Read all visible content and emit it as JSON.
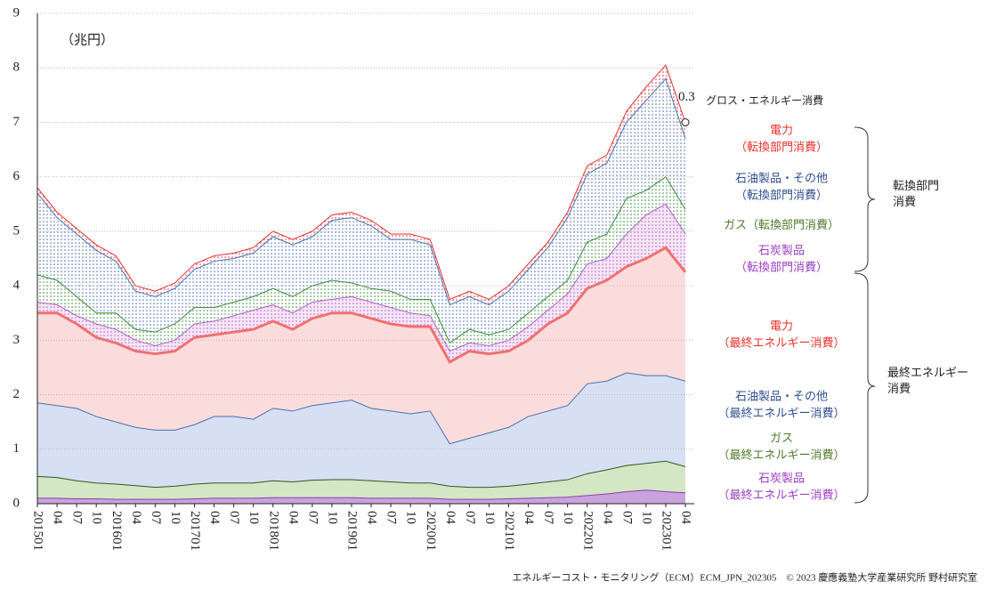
{
  "chart_data": {
    "type": "stacked_area",
    "unit": "（兆円）",
    "categories": [
      "201501",
      "04",
      "07",
      "10",
      "201601",
      "04",
      "07",
      "10",
      "201701",
      "04",
      "07",
      "10",
      "201801",
      "04",
      "07",
      "10",
      "201901",
      "04",
      "07",
      "10",
      "202001",
      "04",
      "07",
      "10",
      "202101",
      "04",
      "07",
      "10",
      "202201",
      "04",
      "07",
      "10",
      "202301",
      "04"
    ],
    "ylim": [
      0,
      9
    ],
    "yticks": [
      0,
      1,
      2,
      3,
      4,
      5,
      6,
      7,
      8,
      9
    ],
    "grid": true,
    "series": [
      {
        "name": [
          "石炭製品",
          "（最終エネルギー消費）"
        ],
        "style": "solid",
        "color": "#8a3fb0",
        "fill": "#c9a3dd",
        "label_color": "#9a40c0",
        "values": [
          0.1,
          0.1,
          0.09,
          0.09,
          0.08,
          0.08,
          0.08,
          0.08,
          0.09,
          0.1,
          0.1,
          0.1,
          0.11,
          0.11,
          0.11,
          0.11,
          0.11,
          0.1,
          0.1,
          0.1,
          0.1,
          0.08,
          0.08,
          0.08,
          0.09,
          0.1,
          0.11,
          0.12,
          0.15,
          0.18,
          0.22,
          0.25,
          0.22,
          0.2
        ]
      },
      {
        "name": [
          "ガス",
          "（最終エネルギー消費）"
        ],
        "style": "solid",
        "color": "#2f5a22",
        "fill": "#d3e7c4",
        "label_color": "#4f7a2a",
        "values": [
          0.4,
          0.38,
          0.33,
          0.29,
          0.28,
          0.25,
          0.22,
          0.24,
          0.27,
          0.28,
          0.28,
          0.28,
          0.31,
          0.29,
          0.32,
          0.33,
          0.33,
          0.32,
          0.3,
          0.28,
          0.28,
          0.24,
          0.22,
          0.22,
          0.23,
          0.26,
          0.29,
          0.32,
          0.4,
          0.44,
          0.48,
          0.49,
          0.56,
          0.48
        ]
      },
      {
        "name": [
          "石油製品・その他",
          "（最終エネルギー消費）"
        ],
        "style": "solid",
        "color": "#4a6fb0",
        "fill": "#d6e0f2",
        "label_color": "#2f4f8f",
        "values": [
          1.35,
          1.32,
          1.33,
          1.22,
          1.14,
          1.07,
          1.05,
          1.03,
          1.09,
          1.22,
          1.22,
          1.17,
          1.33,
          1.3,
          1.37,
          1.41,
          1.46,
          1.33,
          1.3,
          1.27,
          1.32,
          0.78,
          0.9,
          1.0,
          1.08,
          1.24,
          1.3,
          1.36,
          1.65,
          1.63,
          1.7,
          1.61,
          1.57,
          1.57
        ]
      },
      {
        "name": [
          "電力",
          "（最終エネルギー消費）"
        ],
        "style": "solid",
        "color": "#f07070",
        "fill": "#fbdcdc",
        "label_color": "#e8302a",
        "values": [
          1.65,
          1.7,
          1.55,
          1.45,
          1.45,
          1.4,
          1.4,
          1.45,
          1.6,
          1.5,
          1.55,
          1.65,
          1.6,
          1.5,
          1.6,
          1.65,
          1.6,
          1.65,
          1.6,
          1.6,
          1.55,
          1.5,
          1.6,
          1.45,
          1.4,
          1.4,
          1.6,
          1.7,
          1.75,
          1.85,
          1.95,
          2.15,
          2.35,
          2.0
        ]
      },
      {
        "name": [
          "石炭製品",
          "（転換部門消費）"
        ],
        "style": "dotted",
        "color": "#b060c8",
        "fill": "#f6e6f6",
        "label_color": "#9a40c0",
        "values": [
          0.2,
          0.15,
          0.15,
          0.25,
          0.25,
          0.2,
          0.15,
          0.2,
          0.25,
          0.25,
          0.3,
          0.35,
          0.3,
          0.3,
          0.3,
          0.25,
          0.3,
          0.3,
          0.3,
          0.25,
          0.2,
          0.2,
          0.15,
          0.15,
          0.2,
          0.25,
          0.25,
          0.35,
          0.45,
          0.4,
          0.6,
          0.8,
          0.8,
          0.7
        ]
      },
      {
        "name": [
          "ガス（転換部門消費）"
        ],
        "style": "dotted",
        "color": "#3a8a3a",
        "fill": "#ffffff",
        "label_color": "#4f7a2a",
        "values": [
          0.5,
          0.45,
          0.35,
          0.2,
          0.3,
          0.2,
          0.25,
          0.3,
          0.3,
          0.25,
          0.25,
          0.25,
          0.3,
          0.3,
          0.3,
          0.35,
          0.25,
          0.25,
          0.3,
          0.25,
          0.3,
          0.15,
          0.25,
          0.2,
          0.2,
          0.25,
          0.25,
          0.25,
          0.4,
          0.45,
          0.65,
          0.45,
          0.5,
          0.45
        ]
      },
      {
        "name": [
          "石油製品・その他",
          "（転換部門消費）"
        ],
        "style": "dotted",
        "color": "#4a6fb0",
        "fill": "#ffffff",
        "label_color": "#2f4f8f",
        "values": [
          1.5,
          1.15,
          1.15,
          1.15,
          0.95,
          0.7,
          0.65,
          0.65,
          0.7,
          0.85,
          0.8,
          0.8,
          0.95,
          0.95,
          0.9,
          1.1,
          1.2,
          1.15,
          0.95,
          1.1,
          1.0,
          0.7,
          0.6,
          0.55,
          0.7,
          0.8,
          0.9,
          1.15,
          1.25,
          1.3,
          1.4,
          1.65,
          1.8,
          1.3
        ]
      },
      {
        "name": [
          "電力",
          "（転換部門消費）"
        ],
        "style": "dotted",
        "color": "#e03030",
        "fill": "#ffffff",
        "label_color": "#e8302a",
        "values": [
          0.1,
          0.1,
          0.1,
          0.1,
          0.1,
          0.1,
          0.1,
          0.1,
          0.1,
          0.1,
          0.1,
          0.1,
          0.1,
          0.1,
          0.1,
          0.1,
          0.1,
          0.1,
          0.1,
          0.1,
          0.1,
          0.1,
          0.1,
          0.1,
          0.1,
          0.1,
          0.1,
          0.1,
          0.15,
          0.15,
          0.2,
          0.25,
          0.25,
          0.3
        ]
      }
    ],
    "total_label": "グロス・エネルギー消費",
    "brace_labels": [
      [
        "転換部門",
        "消費"
      ],
      [
        "最終エネルギー",
        "消費"
      ]
    ],
    "footer": "エネルギーコスト・モニタリング（ECM）ECM_JPN_202305　© 2023 慶應義塾大学産業研究所 野村研究室"
  }
}
